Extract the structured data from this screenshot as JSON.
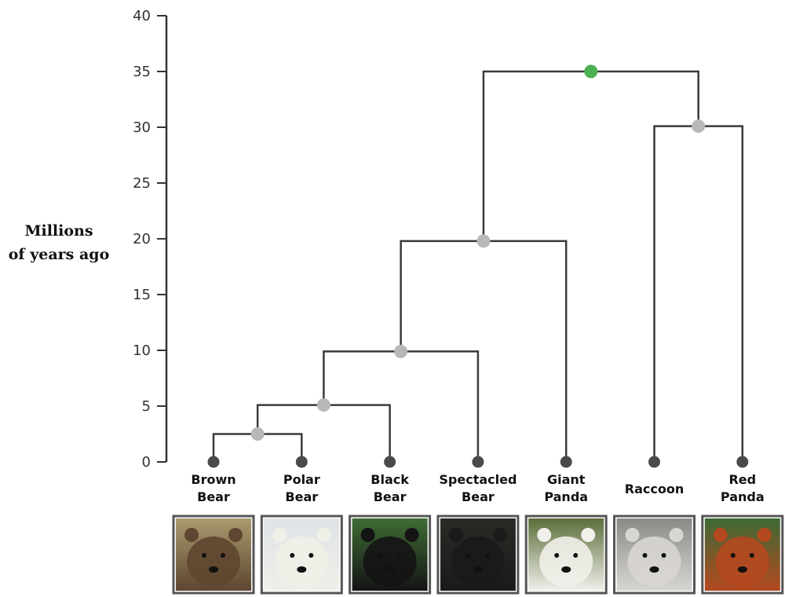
{
  "axis": {
    "title_line1": "Millions",
    "title_line2": "of years ago",
    "ticks": [
      0,
      5,
      10,
      15,
      20,
      25,
      30,
      35,
      40
    ]
  },
  "colors": {
    "tip": "#4a4a4a",
    "node": "#b8b8b8",
    "root": "#4caf50",
    "line": "#3a3a3a"
  },
  "taxa": [
    {
      "id": "brown-bear",
      "lines": [
        "Brown",
        "Bear"
      ],
      "photo": "brown-bear-photo",
      "photo_colors": [
        "#a99a6f",
        "#5e4630"
      ]
    },
    {
      "id": "polar-bear",
      "lines": [
        "Polar",
        "Bear"
      ],
      "photo": "polar-bear-photo",
      "photo_colors": [
        "#dfe4e8",
        "#f0efe8"
      ]
    },
    {
      "id": "black-bear",
      "lines": [
        "Black",
        "Bear"
      ],
      "photo": "black-bear-photo",
      "photo_colors": [
        "#3f6b35",
        "#141414"
      ]
    },
    {
      "id": "spectacled-bear",
      "lines": [
        "Spectacled",
        "Bear"
      ],
      "photo": "spectacled-bear-photo",
      "photo_colors": [
        "#2a2a26",
        "#1a1a1a"
      ]
    },
    {
      "id": "giant-panda",
      "lines": [
        "Giant",
        "Panda"
      ],
      "photo": "giant-panda-photo",
      "photo_colors": [
        "#5b6e3a",
        "#f1f0ea"
      ]
    },
    {
      "id": "raccoon",
      "lines": [
        "Raccoon"
      ],
      "photo": "raccoon-photo",
      "photo_colors": [
        "#8c8a86",
        "#d8d6d2"
      ]
    },
    {
      "id": "red-panda",
      "lines": [
        "Red",
        "Panda"
      ],
      "photo": "red-panda-photo",
      "photo_colors": [
        "#3e6a35",
        "#b4481f"
      ]
    }
  ],
  "nodes": [
    {
      "id": "node-brown-polar",
      "age": 2.5,
      "children": [
        "brown-bear",
        "polar-bear"
      ],
      "type": "node"
    },
    {
      "id": "node-ursus",
      "age": 5.1,
      "children": [
        "node-brown-polar",
        "black-bear"
      ],
      "type": "node"
    },
    {
      "id": "node-ursinae",
      "age": 9.9,
      "children": [
        "node-ursus",
        "spectacled-bear"
      ],
      "type": "node"
    },
    {
      "id": "node-ursidae",
      "age": 19.8,
      "children": [
        "node-ursinae",
        "giant-panda"
      ],
      "type": "node"
    },
    {
      "id": "node-raccoon-redpanda",
      "age": 30.1,
      "children": [
        "raccoon",
        "red-panda"
      ],
      "type": "node"
    },
    {
      "id": "node-root",
      "age": 35,
      "children": [
        "node-ursidae",
        "node-raccoon-redpanda"
      ],
      "type": "root"
    }
  ]
}
